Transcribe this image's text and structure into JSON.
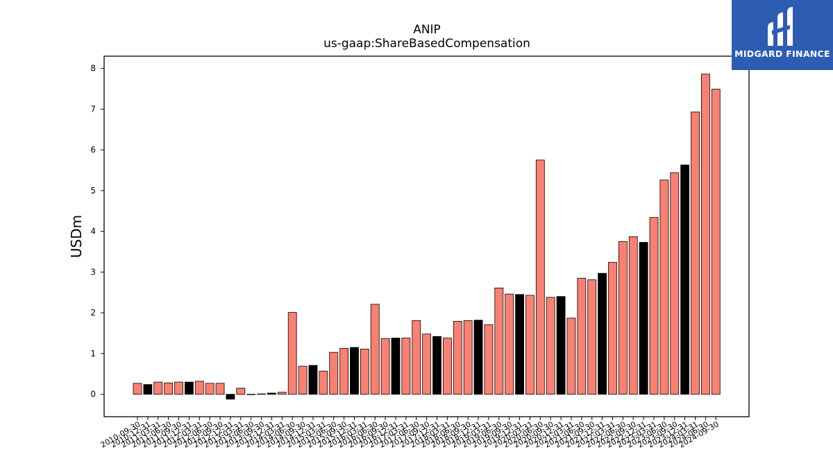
{
  "chart_data": {
    "type": "bar",
    "title": "ANIP",
    "subtitle": "us-gaap:ShareBasedCompensation",
    "ylabel": "USDm",
    "xlabel": "",
    "ylim": [
      -0.55,
      8.3
    ],
    "yticks": [
      0,
      1,
      2,
      3,
      4,
      5,
      6,
      7,
      8
    ],
    "grid": false,
    "colors": {
      "quarter": "#fa8072",
      "year_end": "#000000"
    },
    "bars": [
      {
        "date": "2010-09-30",
        "value": 0.27,
        "kind": "quarter"
      },
      {
        "date": "2010-12-31",
        "value": 0.24,
        "kind": "year_end"
      },
      {
        "date": "2011-03-31",
        "value": 0.3,
        "kind": "quarter"
      },
      {
        "date": "2011-06-30",
        "value": 0.28,
        "kind": "quarter"
      },
      {
        "date": "2011-09-30",
        "value": 0.3,
        "kind": "quarter"
      },
      {
        "date": "2011-12-31",
        "value": 0.3,
        "kind": "year_end"
      },
      {
        "date": "2012-03-31",
        "value": 0.32,
        "kind": "quarter"
      },
      {
        "date": "2012-06-30",
        "value": 0.27,
        "kind": "quarter"
      },
      {
        "date": "2012-09-30",
        "value": 0.27,
        "kind": "quarter"
      },
      {
        "date": "2012-12-31",
        "value": -0.12,
        "kind": "year_end"
      },
      {
        "date": "2013-03-31",
        "value": 0.15,
        "kind": "quarter"
      },
      {
        "date": "2013-06-30",
        "value": 0.0,
        "kind": "quarter"
      },
      {
        "date": "2013-09-30",
        "value": 0.01,
        "kind": "quarter"
      },
      {
        "date": "2013-12-31",
        "value": 0.03,
        "kind": "year_end"
      },
      {
        "date": "2014-03-31",
        "value": 0.05,
        "kind": "quarter"
      },
      {
        "date": "2014-06-30",
        "value": 2.01,
        "kind": "quarter"
      },
      {
        "date": "2014-09-30",
        "value": 0.69,
        "kind": "quarter"
      },
      {
        "date": "2014-12-31",
        "value": 0.71,
        "kind": "year_end"
      },
      {
        "date": "2015-03-31",
        "value": 0.57,
        "kind": "quarter"
      },
      {
        "date": "2015-06-30",
        "value": 1.03,
        "kind": "quarter"
      },
      {
        "date": "2015-09-30",
        "value": 1.13,
        "kind": "quarter"
      },
      {
        "date": "2015-12-31",
        "value": 1.15,
        "kind": "year_end"
      },
      {
        "date": "2016-03-31",
        "value": 1.11,
        "kind": "quarter"
      },
      {
        "date": "2016-06-30",
        "value": 2.21,
        "kind": "quarter"
      },
      {
        "date": "2016-09-30",
        "value": 1.37,
        "kind": "quarter"
      },
      {
        "date": "2016-12-31",
        "value": 1.38,
        "kind": "year_end"
      },
      {
        "date": "2017-03-31",
        "value": 1.38,
        "kind": "quarter"
      },
      {
        "date": "2017-06-30",
        "value": 1.81,
        "kind": "quarter"
      },
      {
        "date": "2017-09-30",
        "value": 1.48,
        "kind": "quarter"
      },
      {
        "date": "2017-12-31",
        "value": 1.42,
        "kind": "year_end"
      },
      {
        "date": "2018-03-31",
        "value": 1.38,
        "kind": "quarter"
      },
      {
        "date": "2018-06-30",
        "value": 1.79,
        "kind": "quarter"
      },
      {
        "date": "2018-09-30",
        "value": 1.81,
        "kind": "quarter"
      },
      {
        "date": "2018-12-31",
        "value": 1.82,
        "kind": "year_end"
      },
      {
        "date": "2019-03-31",
        "value": 1.71,
        "kind": "quarter"
      },
      {
        "date": "2019-06-30",
        "value": 2.61,
        "kind": "quarter"
      },
      {
        "date": "2019-09-30",
        "value": 2.46,
        "kind": "quarter"
      },
      {
        "date": "2019-12-31",
        "value": 2.45,
        "kind": "year_end"
      },
      {
        "date": "2020-03-31",
        "value": 2.43,
        "kind": "quarter"
      },
      {
        "date": "2020-06-30",
        "value": 5.75,
        "kind": "quarter"
      },
      {
        "date": "2020-09-30",
        "value": 2.38,
        "kind": "quarter"
      },
      {
        "date": "2020-12-31",
        "value": 2.4,
        "kind": "year_end"
      },
      {
        "date": "2021-03-31",
        "value": 1.87,
        "kind": "quarter"
      },
      {
        "date": "2021-06-30",
        "value": 2.85,
        "kind": "quarter"
      },
      {
        "date": "2021-09-30",
        "value": 2.81,
        "kind": "quarter"
      },
      {
        "date": "2021-12-31",
        "value": 2.97,
        "kind": "year_end"
      },
      {
        "date": "2022-03-31",
        "value": 3.24,
        "kind": "quarter"
      },
      {
        "date": "2022-06-30",
        "value": 3.75,
        "kind": "quarter"
      },
      {
        "date": "2022-09-30",
        "value": 3.87,
        "kind": "quarter"
      },
      {
        "date": "2022-12-31",
        "value": 3.73,
        "kind": "year_end"
      },
      {
        "date": "2023-03-31",
        "value": 4.34,
        "kind": "quarter"
      },
      {
        "date": "2023-06-30",
        "value": 5.26,
        "kind": "quarter"
      },
      {
        "date": "2023-09-30",
        "value": 5.44,
        "kind": "quarter"
      },
      {
        "date": "2023-12-31",
        "value": 5.63,
        "kind": "year_end"
      },
      {
        "date": "2024-03-31",
        "value": 6.93,
        "kind": "quarter"
      },
      {
        "date": "2024-06-30",
        "value": 7.86,
        "kind": "quarter"
      },
      {
        "date": "2024-09-30",
        "value": 7.49,
        "kind": "quarter"
      }
    ]
  },
  "logo": {
    "text": "MIDGARD FINANCE",
    "icon": "midgard-logo-icon"
  }
}
